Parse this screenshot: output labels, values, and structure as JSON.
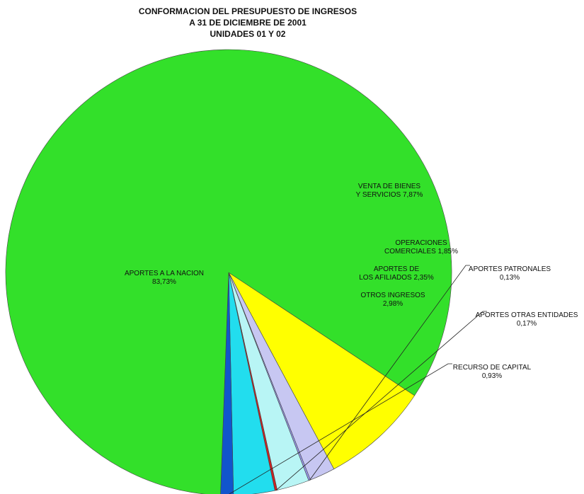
{
  "chart_data": {
    "type": "pie",
    "title_lines": [
      "CONFORMACION DEL PRESUPUESTO DE INGRESOS",
      "A 31 DE DICIEMBRE DE 2001",
      "UNIDADES 01 Y 02"
    ],
    "slices": [
      {
        "label_lines": [
          "VENTA DE BIENES",
          "Y SERVICIOS 7,87%"
        ],
        "value": 7.87,
        "color": "#ffff00"
      },
      {
        "label_lines": [
          "OPERACIONES",
          "COMERCIALES 1,85%"
        ],
        "value": 1.85,
        "color": "#c7c7f2"
      },
      {
        "label_lines": [
          "APORTES PATRONALES",
          "0,13%"
        ],
        "value": 0.13,
        "color": "#9999ee"
      },
      {
        "label_lines": [
          "APORTES DE",
          "LOS AFILIADOS 2,35%"
        ],
        "value": 2.35,
        "color": "#b8f5f5"
      },
      {
        "label_lines": [
          "APORTES OTRAS ENTIDADES",
          "0,17%"
        ],
        "value": 0.17,
        "color": "#cc2222"
      },
      {
        "label_lines": [
          "OTROS INGRESOS",
          "2,98%"
        ],
        "value": 2.98,
        "color": "#22ddee"
      },
      {
        "label_lines": [
          "RECURSO DE CAPITAL",
          "0,93%"
        ],
        "value": 0.93,
        "color": "#1155cc"
      },
      {
        "label_lines": [
          "APORTES A LA NACION",
          "83,73%"
        ],
        "value": 83.73,
        "color": "#33e02a"
      }
    ]
  }
}
